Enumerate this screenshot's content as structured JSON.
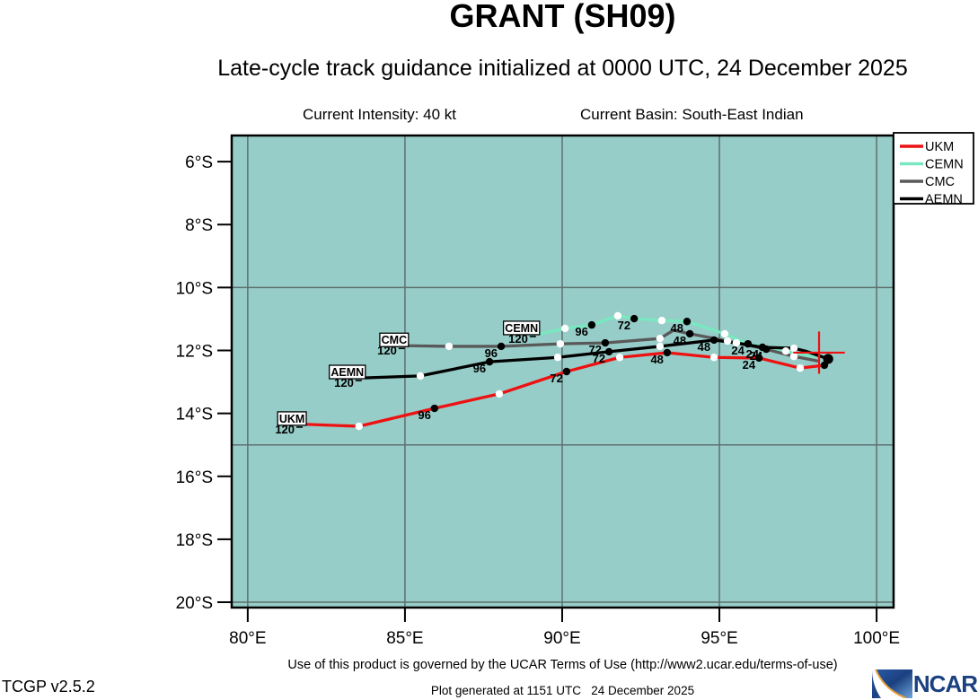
{
  "header": {
    "title": "GRANT (SH09)",
    "subtitle": "Late-cycle track guidance initialized at 0000 UTC, 24 December 2025",
    "intensity": "Current Intensity: 40 kt",
    "basin": "Current Basin: South-East Indian"
  },
  "footer": {
    "terms": "Use of this product is governed by the UCAR Terms of Use (http://www2.ucar.edu/terms-of-use)",
    "version": "TCGP v2.5.2",
    "generated": "Plot generated at 1151 UTC   24 December 2025",
    "logo_text": "NCAR"
  },
  "chart_data": {
    "type": "line",
    "projection": "lon-lat track map",
    "title": "GRANT (SH09)",
    "ocean_color": "#97cdc8",
    "x_axis": {
      "range": [
        79.49,
        100.54
      ],
      "ticks": [
        {
          "value": 80,
          "label": "80°E"
        },
        {
          "value": 85,
          "label": "85°E"
        },
        {
          "value": 90,
          "label": "90°E"
        },
        {
          "value": 95,
          "label": "95°E"
        },
        {
          "value": 100,
          "label": "100°E"
        }
      ]
    },
    "y_axis": {
      "range": [
        5.17,
        20.17
      ],
      "south_positive_down": true,
      "ticks": [
        {
          "value": 6,
          "label": "6°S"
        },
        {
          "value": 8,
          "label": "8°S"
        },
        {
          "value": 10,
          "label": "10°S"
        },
        {
          "value": 12,
          "label": "12°S"
        },
        {
          "value": 14,
          "label": "14°S"
        },
        {
          "value": 16,
          "label": "16°S"
        },
        {
          "value": 18,
          "label": "18°S"
        },
        {
          "value": 20,
          "label": "20°S"
        }
      ]
    },
    "grid": {
      "lon": [
        80,
        85,
        90,
        95,
        100
      ],
      "lat": [
        10,
        15,
        20
      ],
      "color": "#5f6f6f"
    },
    "current_position": {
      "lon": 98.17,
      "lat": 12.07,
      "marker": "cross",
      "color": "#ee1111",
      "arm_lon": 0.82,
      "arm_lat": 0.67
    },
    "legend": {
      "position": "top-right"
    },
    "series": [
      {
        "name": "UKM",
        "color": "#ee1111",
        "points": [
          {
            "hr": 120,
            "lon": 81.89,
            "lat": 14.35,
            "marker": "none",
            "label": "120"
          },
          {
            "hr": 108,
            "lon": 83.54,
            "lat": 14.41,
            "marker": "white"
          },
          {
            "hr": 96,
            "lon": 85.94,
            "lat": 13.84,
            "marker": "black",
            "label": "96"
          },
          {
            "hr": 84,
            "lon": 88.0,
            "lat": 13.38,
            "marker": "white"
          },
          {
            "hr": 72,
            "lon": 90.14,
            "lat": 12.67,
            "marker": "black",
            "label": "72"
          },
          {
            "hr": 60,
            "lon": 91.83,
            "lat": 12.22,
            "marker": "white"
          },
          {
            "hr": 48,
            "lon": 93.34,
            "lat": 12.07,
            "marker": "black",
            "label": "48"
          },
          {
            "hr": 36,
            "lon": 94.83,
            "lat": 12.22,
            "marker": "white"
          },
          {
            "hr": 24,
            "lon": 96.26,
            "lat": 12.24,
            "marker": "black",
            "label": "24"
          },
          {
            "hr": 12,
            "lon": 97.57,
            "lat": 12.56,
            "marker": "white"
          },
          {
            "hr": 0,
            "lon": 98.34,
            "lat": 12.47,
            "marker": "black"
          }
        ]
      },
      {
        "name": "CEMN",
        "color": "#79e8c0",
        "points": [
          {
            "hr": 120,
            "lon": 89.31,
            "lat": 11.47,
            "marker": "none",
            "label": "120"
          },
          {
            "hr": 108,
            "lon": 90.09,
            "lat": 11.3,
            "marker": "white"
          },
          {
            "hr": 96,
            "lon": 90.94,
            "lat": 11.19,
            "marker": "black",
            "label": "96"
          },
          {
            "hr": 84,
            "lon": 91.77,
            "lat": 10.9,
            "marker": "white"
          },
          {
            "hr": 72,
            "lon": 92.29,
            "lat": 10.99,
            "marker": "black",
            "label": "72"
          },
          {
            "hr": 60,
            "lon": 93.17,
            "lat": 11.05,
            "marker": "white"
          },
          {
            "hr": 48,
            "lon": 93.97,
            "lat": 11.08,
            "marker": "black",
            "label": "48"
          },
          {
            "hr": 36,
            "lon": 95.17,
            "lat": 11.47,
            "marker": "white"
          },
          {
            "hr": 24,
            "lon": 95.91,
            "lat": 11.79,
            "marker": "black",
            "label": "24"
          },
          {
            "hr": 12,
            "lon": 97.11,
            "lat": 12.02,
            "marker": "white"
          },
          {
            "hr": 0,
            "lon": 98.0,
            "lat": 12.19,
            "marker": "none"
          }
        ]
      },
      {
        "name": "CMC",
        "color": "#595959",
        "points": [
          {
            "hr": 120,
            "lon": 85.14,
            "lat": 11.85,
            "marker": "none",
            "label": "120"
          },
          {
            "hr": 108,
            "lon": 86.4,
            "lat": 11.87,
            "marker": "white"
          },
          {
            "hr": 96,
            "lon": 88.06,
            "lat": 11.87,
            "marker": "black",
            "label": "96"
          },
          {
            "hr": 84,
            "lon": 89.94,
            "lat": 11.79,
            "marker": "white"
          },
          {
            "hr": 72,
            "lon": 91.37,
            "lat": 11.76,
            "marker": "black",
            "label": "72"
          },
          {
            "hr": 60,
            "lon": 93.11,
            "lat": 11.62,
            "marker": "white"
          },
          {
            "hr": 54,
            "lon": 93.54,
            "lat": 11.36,
            "marker": "none"
          },
          {
            "hr": 48,
            "lon": 94.06,
            "lat": 11.47,
            "marker": "black",
            "label": "48"
          },
          {
            "hr": 36,
            "lon": 95.26,
            "lat": 11.7,
            "marker": "white"
          },
          {
            "hr": 24,
            "lon": 96.49,
            "lat": 11.96,
            "marker": "black",
            "label": "24"
          },
          {
            "hr": 12,
            "lon": 97.37,
            "lat": 12.19,
            "marker": "white"
          },
          {
            "hr": 0,
            "lon": 98.11,
            "lat": 12.33,
            "marker": "none"
          }
        ]
      },
      {
        "name": "AEMN",
        "color": "#000000",
        "points": [
          {
            "hr": 120,
            "lon": 83.77,
            "lat": 12.87,
            "marker": "none",
            "label": "120"
          },
          {
            "hr": 108,
            "lon": 85.49,
            "lat": 12.81,
            "marker": "white"
          },
          {
            "hr": 96,
            "lon": 87.69,
            "lat": 12.36,
            "marker": "black",
            "label": "96"
          },
          {
            "hr": 84,
            "lon": 89.86,
            "lat": 12.22,
            "marker": "white"
          },
          {
            "hr": 72,
            "lon": 91.49,
            "lat": 12.04,
            "marker": "black",
            "label": "72"
          },
          {
            "hr": 60,
            "lon": 93.11,
            "lat": 11.87,
            "marker": "white"
          },
          {
            "hr": 48,
            "lon": 94.83,
            "lat": 11.67,
            "marker": "black",
            "label": "48"
          },
          {
            "hr": 36,
            "lon": 95.54,
            "lat": 11.76,
            "marker": "white"
          },
          {
            "hr": 24,
            "lon": 96.37,
            "lat": 11.9,
            "marker": "black",
            "label": "24"
          },
          {
            "hr": 12,
            "lon": 97.37,
            "lat": 11.93,
            "marker": "white"
          },
          {
            "hr": 6,
            "lon": 97.74,
            "lat": 12.02,
            "marker": "none"
          },
          {
            "hr": 0,
            "lon": 98.46,
            "lat": 12.27,
            "marker": "black",
            "big": true
          }
        ]
      }
    ]
  }
}
